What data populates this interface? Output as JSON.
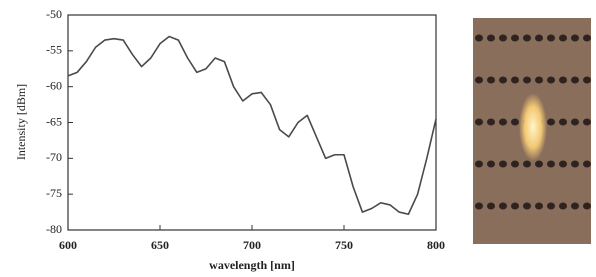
{
  "chart_data": {
    "type": "line",
    "x_label": "wavelength [nm]",
    "y_label": "Intensity [dBm]",
    "x": [
      600,
      605,
      610,
      615,
      620,
      625,
      630,
      635,
      640,
      645,
      650,
      655,
      660,
      665,
      670,
      675,
      680,
      685,
      690,
      695,
      700,
      705,
      710,
      715,
      720,
      725,
      730,
      735,
      740,
      745,
      750,
      755,
      760,
      765,
      770,
      775,
      780,
      785,
      790,
      795,
      800
    ],
    "series": [
      {
        "color": "#4a4a4a",
        "values": [
          -58.5,
          -58,
          -56.5,
          -54.5,
          -53.5,
          -53.3,
          -53.5,
          -55.5,
          -57.2,
          -56,
          -54,
          -53,
          -53.5,
          -56,
          -58,
          -57.5,
          -56,
          -56.5,
          -60,
          -62,
          -61,
          -60.8,
          -62.5,
          -66,
          -67,
          -65,
          -64,
          -67,
          -70,
          -69.5,
          -69.5,
          -74,
          -77.5,
          -77,
          -76.2,
          -76.5,
          -77.5,
          -77.8,
          -75,
          -70,
          -64.5
        ]
      }
    ],
    "xlim": [
      600,
      800
    ],
    "xticks": [
      600,
      650,
      700,
      750,
      800
    ],
    "ylim": [
      -80,
      -50
    ],
    "yticks": [
      -50,
      -55,
      -60,
      -65,
      -70,
      -75,
      -80
    ]
  }
}
